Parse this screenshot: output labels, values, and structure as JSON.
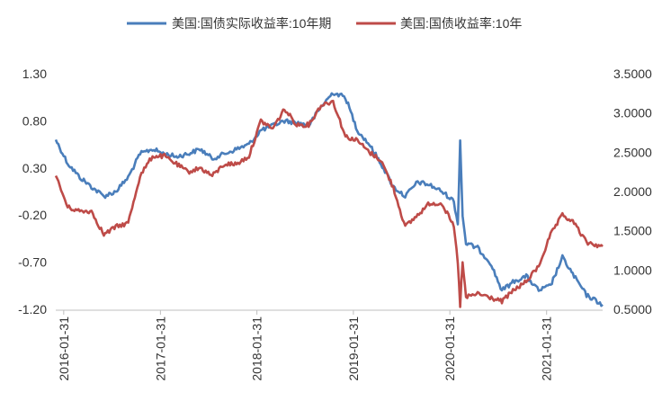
{
  "chart_data": {
    "type": "line",
    "legend_position": "top",
    "grid": false,
    "x_axis": {
      "type": "date",
      "range": [
        "2016-01-01",
        "2021-08-31"
      ],
      "tick_labels": [
        "2016-01-31",
        "2017-01-31",
        "2018-01-31",
        "2019-01-31",
        "2020-01-31",
        "2021-01-31"
      ]
    },
    "y_left": {
      "range": [
        -1.2,
        1.3
      ],
      "ticks": [
        "1.30",
        "0.80",
        "0.30",
        "-0.20",
        "-0.70",
        "-1.20"
      ]
    },
    "y_right": {
      "range": [
        0.5,
        3.5
      ],
      "ticks": [
        "3.5000",
        "3.0000",
        "2.5000",
        "2.0000",
        "1.5000",
        "1.0000",
        "0.5000"
      ]
    },
    "series": [
      {
        "name": "美国:国债实际收益率:10年期",
        "color": "#4a7ebb",
        "axis": "left",
        "x": [
          "2016-01-01",
          "2016-02-15",
          "2016-04-01",
          "2016-05-15",
          "2016-07-01",
          "2016-08-15",
          "2016-10-01",
          "2016-11-15",
          "2017-01-01",
          "2017-02-15",
          "2017-04-01",
          "2017-05-15",
          "2017-07-01",
          "2017-08-15",
          "2017-10-01",
          "2017-11-15",
          "2018-01-01",
          "2018-02-15",
          "2018-04-01",
          "2018-05-15",
          "2018-07-01",
          "2018-08-15",
          "2018-10-01",
          "2018-11-15",
          "2019-01-01",
          "2019-02-15",
          "2019-04-01",
          "2019-05-15",
          "2019-07-01",
          "2019-08-15",
          "2019-10-01",
          "2019-11-15",
          "2020-01-01",
          "2020-02-15",
          "2020-03-01",
          "2020-03-10",
          "2020-03-19",
          "2020-04-01",
          "2020-05-15",
          "2020-07-01",
          "2020-08-15",
          "2020-10-01",
          "2020-11-15",
          "2021-01-01",
          "2021-02-15",
          "2021-04-01",
          "2021-05-15",
          "2021-07-01",
          "2021-08-31"
        ],
        "y": [
          0.6,
          0.35,
          0.2,
          0.1,
          0.0,
          0.05,
          0.2,
          0.45,
          0.5,
          0.45,
          0.42,
          0.45,
          0.5,
          0.4,
          0.45,
          0.5,
          0.55,
          0.7,
          0.75,
          0.8,
          0.78,
          0.75,
          0.95,
          1.1,
          1.05,
          0.7,
          0.55,
          0.35,
          0.1,
          0.0,
          0.15,
          0.12,
          0.05,
          -0.05,
          -0.3,
          0.6,
          -0.2,
          -0.5,
          -0.55,
          -0.7,
          -1.0,
          -0.9,
          -0.85,
          -1.0,
          -0.95,
          -0.65,
          -0.85,
          -1.05,
          -1.15
        ]
      },
      {
        "name": "美国:国债收益率:10年",
        "color": "#be4b48",
        "axis": "right",
        "x": [
          "2016-01-01",
          "2016-02-15",
          "2016-04-01",
          "2016-05-15",
          "2016-07-01",
          "2016-08-15",
          "2016-10-01",
          "2016-11-15",
          "2017-01-01",
          "2017-02-15",
          "2017-04-01",
          "2017-05-15",
          "2017-07-01",
          "2017-08-15",
          "2017-10-01",
          "2017-11-15",
          "2018-01-01",
          "2018-02-15",
          "2018-04-01",
          "2018-05-15",
          "2018-07-01",
          "2018-08-15",
          "2018-10-01",
          "2018-11-15",
          "2019-01-01",
          "2019-02-15",
          "2019-04-01",
          "2019-05-15",
          "2019-07-01",
          "2019-08-15",
          "2019-10-01",
          "2019-11-15",
          "2020-01-01",
          "2020-02-15",
          "2020-03-01",
          "2020-03-10",
          "2020-03-19",
          "2020-04-01",
          "2020-05-15",
          "2020-07-01",
          "2020-08-15",
          "2020-10-01",
          "2020-11-15",
          "2021-01-01",
          "2021-02-15",
          "2021-04-01",
          "2021-05-15",
          "2021-07-01",
          "2021-08-31"
        ],
        "y": [
          2.2,
          1.8,
          1.75,
          1.75,
          1.45,
          1.55,
          1.6,
          2.2,
          2.45,
          2.45,
          2.35,
          2.25,
          2.3,
          2.2,
          2.35,
          2.35,
          2.45,
          2.9,
          2.8,
          3.05,
          2.85,
          2.85,
          3.1,
          3.15,
          2.7,
          2.65,
          2.5,
          2.4,
          2.05,
          1.55,
          1.7,
          1.85,
          1.85,
          1.55,
          1.1,
          0.55,
          1.1,
          0.65,
          0.7,
          0.65,
          0.6,
          0.75,
          0.85,
          1.05,
          1.45,
          1.7,
          1.6,
          1.35,
          1.3
        ]
      }
    ]
  }
}
